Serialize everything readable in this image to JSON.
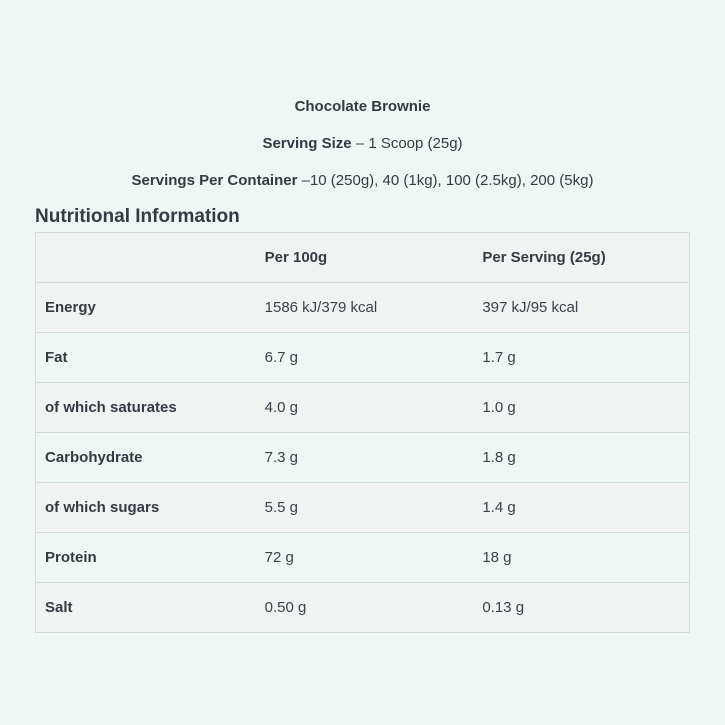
{
  "page": {
    "background_color": "#eef7f4",
    "text_color": "#343b42",
    "product_title": "Chocolate Brownie",
    "serving_size": {
      "label": "Serving Size",
      "value": "– 1 Scoop (25g)"
    },
    "servings_per_container": {
      "label": "Servings Per Container",
      "value": "–10 (250g), 40 (1kg), 100 (2.5kg), 200 (5kg)"
    },
    "section_heading": "Nutritional Information"
  },
  "nutrition_table": {
    "columns": [
      "",
      "Per 100g",
      "Per Serving (25g)"
    ],
    "rows": [
      {
        "label": "Energy",
        "per_100g": "1586 kJ/379 kcal",
        "per_serving": "397 kJ/95 kcal"
      },
      {
        "label": "Fat",
        "per_100g": "6.7 g",
        "per_serving": "1.7 g"
      },
      {
        "label": "of which saturates",
        "per_100g": "4.0 g",
        "per_serving": "1.0 g"
      },
      {
        "label": "Carbohydrate",
        "per_100g": "7.3 g",
        "per_serving": "1.8 g"
      },
      {
        "label": "of which sugars",
        "per_100g": "5.5 g",
        "per_serving": "1.4 g"
      },
      {
        "label": "Protein",
        "per_100g": "72 g",
        "per_serving": "18 g"
      },
      {
        "label": "Salt",
        "per_100g": "0.50 g",
        "per_serving": "0.13 g"
      }
    ],
    "colors": {
      "stripe_row": "#f1f2f2",
      "border": "#d5d9d9"
    }
  }
}
